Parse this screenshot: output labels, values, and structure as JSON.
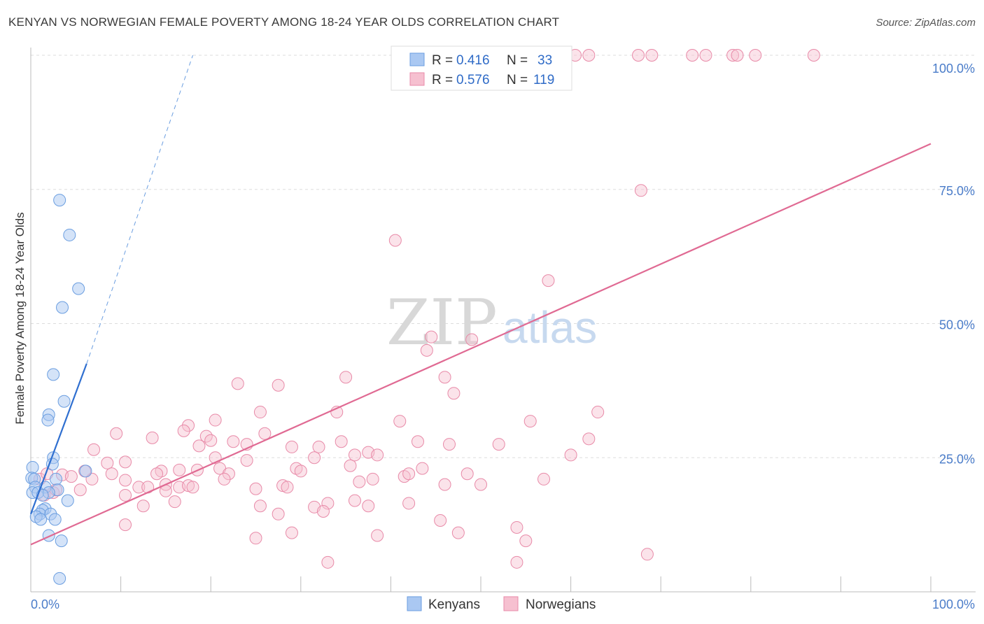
{
  "header": {
    "title": "KENYAN VS NORWEGIAN FEMALE POVERTY AMONG 18-24 YEAR OLDS CORRELATION CHART",
    "source": "Source: ZipAtlas.com"
  },
  "watermark": {
    "part1": "ZIP",
    "part2": "atlas"
  },
  "colors": {
    "kenyans_fill": "#aac8f2",
    "kenyans_stroke": "#6b9ee0",
    "kenyans_line": "#2f6fd0",
    "norwegians_fill": "#f6c0d0",
    "norwegians_stroke": "#e88aa8",
    "norwegians_line": "#e06a93",
    "tick_text": "#4a7cc9",
    "grid": "#dddddd"
  },
  "legend": {
    "rows": [
      {
        "r_label": "R =",
        "r_value": "0.416",
        "n_label": "N =",
        "n_value": "33"
      },
      {
        "r_label": "R =",
        "r_value": "0.576",
        "n_label": "N =",
        "n_value": "119"
      }
    ]
  },
  "bottom_legend": {
    "items": [
      "Kenyans",
      "Norwegians"
    ]
  },
  "chart_data": {
    "type": "scatter",
    "title": "KENYAN VS NORWEGIAN FEMALE POVERTY AMONG 18-24 YEAR OLDS CORRELATION CHART",
    "xlabel": "",
    "ylabel": "Female Poverty Among 18-24 Year Olds",
    "xlim": [
      0,
      100
    ],
    "ylim": [
      0,
      100
    ],
    "x_tick_labels": [
      "0.0%",
      "100.0%"
    ],
    "y_tick_labels": [
      "25.0%",
      "50.0%",
      "75.0%",
      "100.0%"
    ],
    "y_ticks": [
      25,
      50,
      75,
      100
    ],
    "grid": true,
    "legend_position": "top-center",
    "series": [
      {
        "name": "Kenyans",
        "r": 0.416,
        "n": 33,
        "trend": {
          "x0": 0,
          "y0": 14.5,
          "x1": 6.2,
          "y1": 42.5,
          "dashed_to": {
            "x": 18,
            "y": 100
          }
        },
        "points": [
          [
            3.2,
            73.0
          ],
          [
            4.3,
            66.5
          ],
          [
            5.3,
            56.5
          ],
          [
            3.5,
            53.0
          ],
          [
            2.5,
            40.5
          ],
          [
            3.7,
            35.5
          ],
          [
            2.0,
            33.0
          ],
          [
            1.9,
            32.0
          ],
          [
            2.5,
            25.0
          ],
          [
            2.4,
            23.8
          ],
          [
            0.2,
            23.2
          ],
          [
            0.1,
            21.2
          ],
          [
            0.4,
            21.0
          ],
          [
            2.8,
            21.0
          ],
          [
            0.5,
            19.5
          ],
          [
            1.6,
            19.5
          ],
          [
            3.0,
            19.0
          ],
          [
            0.2,
            18.5
          ],
          [
            0.8,
            18.5
          ],
          [
            2.0,
            18.5
          ],
          [
            1.3,
            18.0
          ],
          [
            4.1,
            17.0
          ],
          [
            1.6,
            15.5
          ],
          [
            1.3,
            15.2
          ],
          [
            1.0,
            14.5
          ],
          [
            2.2,
            14.5
          ],
          [
            0.6,
            14.0
          ],
          [
            1.1,
            13.5
          ],
          [
            2.7,
            13.5
          ],
          [
            2.0,
            10.5
          ],
          [
            3.4,
            9.5
          ],
          [
            3.2,
            2.5
          ],
          [
            6.1,
            22.5
          ]
        ]
      },
      {
        "name": "Norwegians",
        "r": 0.576,
        "n": 119,
        "trend": {
          "x0": 0,
          "y0": 8.8,
          "x1": 100,
          "y1": 83.5
        },
        "points": [
          [
            56.5,
            100.0
          ],
          [
            58.5,
            100.0
          ],
          [
            60.5,
            100.0
          ],
          [
            62.0,
            100.0
          ],
          [
            67.5,
            100.0
          ],
          [
            69.0,
            100.0
          ],
          [
            73.5,
            100.0
          ],
          [
            75.0,
            100.0
          ],
          [
            78.0,
            100.0
          ],
          [
            78.5,
            100.0
          ],
          [
            80.5,
            100.0
          ],
          [
            87.0,
            100.0
          ],
          [
            67.8,
            74.8
          ],
          [
            40.5,
            65.5
          ],
          [
            57.5,
            58.0
          ],
          [
            44.5,
            47.5
          ],
          [
            49.0,
            47.0
          ],
          [
            44.0,
            45.0
          ],
          [
            23.0,
            38.8
          ],
          [
            27.5,
            38.5
          ],
          [
            35.0,
            40.0
          ],
          [
            46.0,
            40.0
          ],
          [
            47.0,
            37.0
          ],
          [
            25.5,
            33.5
          ],
          [
            34.0,
            33.5
          ],
          [
            63.0,
            33.5
          ],
          [
            41.0,
            31.8
          ],
          [
            55.5,
            31.8
          ],
          [
            17.5,
            31.0
          ],
          [
            20.5,
            32.0
          ],
          [
            17.0,
            30.0
          ],
          [
            26.0,
            29.5
          ],
          [
            9.5,
            29.5
          ],
          [
            13.5,
            28.7
          ],
          [
            19.5,
            29.0
          ],
          [
            20.0,
            28.2
          ],
          [
            22.5,
            28.0
          ],
          [
            34.5,
            28.0
          ],
          [
            24.0,
            27.5
          ],
          [
            46.5,
            27.5
          ],
          [
            52.0,
            27.5
          ],
          [
            18.7,
            27.2
          ],
          [
            29.0,
            27.0
          ],
          [
            32.0,
            27.0
          ],
          [
            7.0,
            26.5
          ],
          [
            37.5,
            26.0
          ],
          [
            38.5,
            25.5
          ],
          [
            31.5,
            25.0
          ],
          [
            24.0,
            24.5
          ],
          [
            8.5,
            24.0
          ],
          [
            10.5,
            24.2
          ],
          [
            35.5,
            23.5
          ],
          [
            43.5,
            23.0
          ],
          [
            29.5,
            23.0
          ],
          [
            30.0,
            22.5
          ],
          [
            21.0,
            23.0
          ],
          [
            18.5,
            22.7
          ],
          [
            14.5,
            22.5
          ],
          [
            16.5,
            22.7
          ],
          [
            22.0,
            22.0
          ],
          [
            3.5,
            21.8
          ],
          [
            4.5,
            21.5
          ],
          [
            9.0,
            22.0
          ],
          [
            14.0,
            22.0
          ],
          [
            21.5,
            21.0
          ],
          [
            38.0,
            21.0
          ],
          [
            41.5,
            21.5
          ],
          [
            42.0,
            22.0
          ],
          [
            48.5,
            22.0
          ],
          [
            6.8,
            21.0
          ],
          [
            10.5,
            20.8
          ],
          [
            36.5,
            20.5
          ],
          [
            57.0,
            21.0
          ],
          [
            15.0,
            20.0
          ],
          [
            28.0,
            19.8
          ],
          [
            28.5,
            19.5
          ],
          [
            46.0,
            20.0
          ],
          [
            50.0,
            20.0
          ],
          [
            12.0,
            19.5
          ],
          [
            13.0,
            19.5
          ],
          [
            16.5,
            19.5
          ],
          [
            17.5,
            19.8
          ],
          [
            18.0,
            19.5
          ],
          [
            25.0,
            19.2
          ],
          [
            5.5,
            19.0
          ],
          [
            15.0,
            18.8
          ],
          [
            10.5,
            18.0
          ],
          [
            1.5,
            18.0
          ],
          [
            2.5,
            18.5
          ],
          [
            12.5,
            16.0
          ],
          [
            16.0,
            16.8
          ],
          [
            36.0,
            17.0
          ],
          [
            25.5,
            16.0
          ],
          [
            33.0,
            16.5
          ],
          [
            37.5,
            16.0
          ],
          [
            42.0,
            16.5
          ],
          [
            31.5,
            15.8
          ],
          [
            32.5,
            15.0
          ],
          [
            27.5,
            14.5
          ],
          [
            10.5,
            12.5
          ],
          [
            45.5,
            13.3
          ],
          [
            54.0,
            12.0
          ],
          [
            29.0,
            11.0
          ],
          [
            47.5,
            11.0
          ],
          [
            25.0,
            10.0
          ],
          [
            38.5,
            10.5
          ],
          [
            55.0,
            9.5
          ],
          [
            54.0,
            5.5
          ],
          [
            33.0,
            5.5
          ],
          [
            68.5,
            7.0
          ],
          [
            1.0,
            21.0
          ],
          [
            1.8,
            22.0
          ],
          [
            6.0,
            22.5
          ],
          [
            2.8,
            19.0
          ],
          [
            20.5,
            25.0
          ],
          [
            36.0,
            25.5
          ],
          [
            43.0,
            28.0
          ],
          [
            60.0,
            25.5
          ],
          [
            62.0,
            28.5
          ]
        ]
      }
    ]
  }
}
